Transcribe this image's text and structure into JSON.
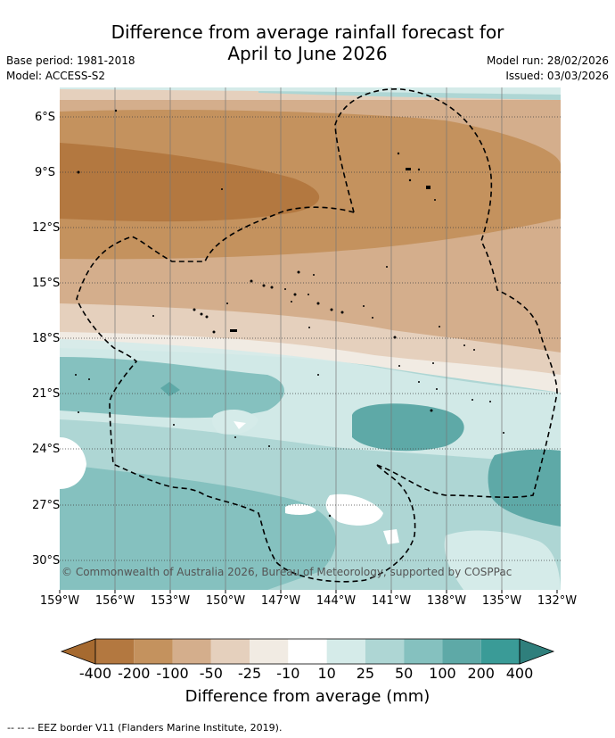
{
  "title_line1": "Difference from average rainfall forecast for",
  "title_line2": "April to June 2026",
  "meta_left": [
    "Base period: 1981-2018",
    "Model: ACCESS-S2"
  ],
  "meta_right": [
    "Model run: 28/02/2026",
    "Issued: 03/03/2026"
  ],
  "latitude_labels": [
    "6°S",
    "9°S",
    "12°S",
    "15°S",
    "18°S",
    "21°S",
    "24°S",
    "27°S",
    "30°S"
  ],
  "longitude_labels": [
    "159°W",
    "156°W",
    "153°W",
    "150°W",
    "147°W",
    "144°W",
    "141°W",
    "138°W",
    "135°W",
    "132°W"
  ],
  "copyright": "© Commonwealth of Australia 2026, Bureau of Meteorology, supported by COSPPac",
  "colorbar": {
    "ticks": [
      "-400",
      "-200",
      "-100",
      "-50",
      "-25",
      "-10",
      "10",
      "25",
      "50",
      "100",
      "200",
      "400"
    ],
    "colors": [
      "#a66a30",
      "#b37840",
      "#c4925e",
      "#d4ae8c",
      "#e5d0bd",
      "#f1ebe3",
      "#ffffff",
      "#d5ebe9",
      "#aed6d4",
      "#85c1bf",
      "#5ea9a7",
      "#3a9b97",
      "#2f7f7c"
    ],
    "title": "Difference from average (mm)"
  },
  "footnote": "--  --  -- EEZ border V11 (Flanders Marine Institute, 2019)."
}
